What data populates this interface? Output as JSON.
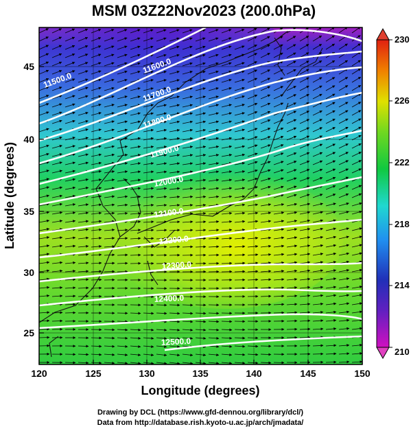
{
  "title": "MSM 03Z22Nov2023 (200.0hPa)",
  "axes": {
    "xlabel": "Longitude (degrees)",
    "ylabel": "Latitude  (degrees)",
    "xticks": [
      "120",
      "125",
      "130",
      "135",
      "140",
      "145",
      "150"
    ],
    "yticks": [
      "25",
      "30",
      "35",
      "40",
      "45"
    ],
    "xlim": [
      120,
      150
    ],
    "ylim": [
      22.5,
      47.9
    ]
  },
  "colorbar": {
    "labels": [
      "230",
      "226",
      "222",
      "218",
      "214",
      "210"
    ],
    "range": [
      210,
      230
    ],
    "colors": [
      "#b000b0",
      "#2030c0",
      "#20a0f0",
      "#20d8c0",
      "#10c840",
      "#80e020",
      "#e0e000",
      "#f0a000",
      "#e02010"
    ]
  },
  "contour_labels": [
    "11500.0",
    "11600.0",
    "11700.0",
    "11800.0",
    "11900.0",
    "12000.0",
    "12100.0",
    "12200.0",
    "12300.0",
    "12400.0",
    "12500.0"
  ],
  "footer": {
    "line1": "Drawing by DCL (https://www.gfd-dennou.org/library/dcl/)",
    "line2": "Data from http://database.rish.kyoto-u.ac.jp/arch/jmadata/"
  },
  "chart_data": {
    "type": "heatmap",
    "title": "MSM 03Z22Nov2023 (200.0hPa)",
    "xlabel": "Longitude (degrees)",
    "ylabel": "Latitude  (degrees)",
    "xlim": [
      120,
      150
    ],
    "ylim": [
      22.5,
      47.9
    ],
    "colorbar_range": [
      210,
      230
    ],
    "contour_levels": [
      11500,
      11600,
      11700,
      11800,
      11900,
      12000,
      12100,
      12200,
      12300,
      12400,
      12500
    ],
    "wind_vectors": "eastward, stronger near 32-38N"
  }
}
